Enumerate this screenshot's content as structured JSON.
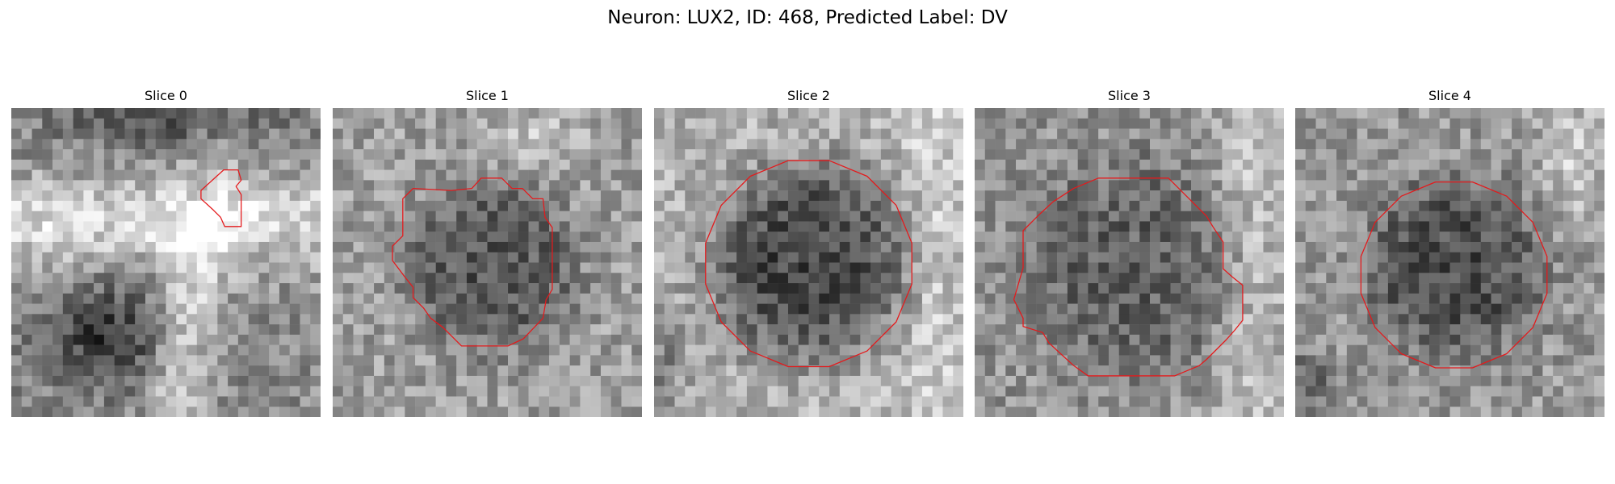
{
  "figure": {
    "title": "Neuron: LUX2, ID: 468, Predicted Label: DV"
  },
  "panels": [
    {
      "title": "Slice 0",
      "image": "grayscale-microscopy-patch-with-small-contour"
    },
    {
      "title": "Slice 1",
      "image": "grayscale-microscopy-patch-with-cell-contour"
    },
    {
      "title": "Slice 2",
      "image": "grayscale-microscopy-patch-with-cell-contour"
    },
    {
      "title": "Slice 3",
      "image": "grayscale-microscopy-patch-with-cell-contour"
    },
    {
      "title": "Slice 4",
      "image": "grayscale-microscopy-patch-with-cell-contour"
    }
  ],
  "colors": {
    "contour": "#e41a1c",
    "background": "#ffffff"
  }
}
